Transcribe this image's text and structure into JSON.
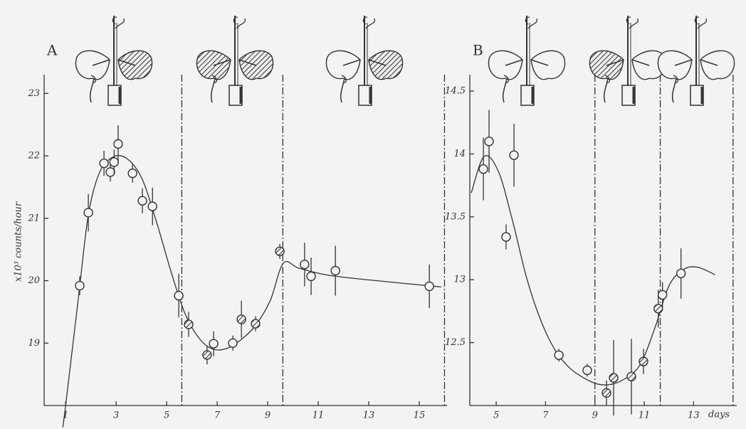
{
  "chart_data": [
    {
      "type": "scatter",
      "label": "A",
      "y_label": "x10³ counts/hour",
      "x": [
        1.56,
        1.9,
        2.52,
        2.77,
        2.92,
        3.08,
        3.65,
        4.04,
        4.44,
        5.48,
        5.87,
        6.6,
        6.86,
        7.62,
        7.96,
        8.52,
        9.48,
        10.46,
        10.72,
        11.68,
        15.4
      ],
      "values": [
        19.92,
        21.09,
        21.88,
        21.74,
        21.9,
        22.19,
        21.72,
        21.28,
        21.19,
        19.76,
        19.3,
        18.81,
        18.99,
        19.0,
        19.38,
        19.31,
        20.47,
        20.26,
        20.07,
        20.16,
        19.91
      ],
      "errors": [
        0.15,
        0.3,
        0.2,
        0.15,
        0.2,
        0.3,
        0.15,
        0.2,
        0.3,
        0.35,
        0.2,
        0.15,
        0.2,
        0.12,
        0.3,
        0.12,
        0.12,
        0.35,
        0.3,
        0.4,
        0.35
      ],
      "hatched": [
        false,
        false,
        false,
        false,
        false,
        false,
        false,
        false,
        false,
        false,
        true,
        true,
        false,
        false,
        true,
        true,
        true,
        false,
        false,
        false,
        false
      ],
      "curve": {
        "x": [
          0.89,
          1.0,
          1.5,
          1.9,
          2.35,
          2.92,
          3.48,
          4.04,
          4.6,
          5.17,
          5.73,
          6.3,
          6.86,
          7.42,
          7.99,
          8.55,
          9.11,
          9.62,
          10.24,
          11.37,
          13.06,
          15.87
        ],
        "values": [
          17.65,
          18.0,
          19.7,
          21.05,
          21.74,
          21.99,
          21.94,
          21.62,
          20.94,
          20.15,
          19.47,
          19.07,
          18.9,
          18.92,
          19.07,
          19.3,
          19.69,
          20.28,
          20.2,
          20.09,
          20.01,
          19.9
        ]
      },
      "dividers": [
        5.6,
        9.6,
        16.0
      ],
      "xlim": [
        0.15,
        16.1
      ],
      "ylim": [
        18,
        23.3
      ],
      "xticks": [
        1,
        3,
        5,
        7,
        9,
        11,
        13,
        15
      ],
      "yticks": [
        19,
        20,
        21,
        22,
        23
      ]
    },
    {
      "type": "scatter",
      "label": "B",
      "x_label": "days",
      "x": [
        4.48,
        4.71,
        5.4,
        5.72,
        7.54,
        8.69,
        9.47,
        9.76,
        10.48,
        10.97,
        11.57,
        11.74,
        12.49
      ],
      "values": [
        13.88,
        14.1,
        13.34,
        13.99,
        12.4,
        12.28,
        12.1,
        12.22,
        12.23,
        12.35,
        12.77,
        12.88,
        13.05
      ],
      "errors": [
        0.25,
        0.25,
        0.1,
        0.25,
        0.05,
        0.05,
        0.1,
        0.3,
        0.3,
        0.1,
        0.15,
        0.1,
        0.2
      ],
      "hatched": [
        false,
        false,
        false,
        false,
        false,
        false,
        true,
        true,
        true,
        true,
        true,
        false,
        false
      ],
      "curve": {
        "x": [
          3.99,
          4.51,
          5.09,
          5.66,
          6.24,
          6.82,
          7.39,
          7.97,
          8.54,
          9.12,
          9.7,
          10.27,
          10.85,
          11.42,
          12.0,
          12.58,
          13.15,
          13.87
        ],
        "values": [
          13.69,
          13.98,
          13.86,
          13.47,
          13.01,
          12.67,
          12.44,
          12.3,
          12.22,
          12.17,
          12.17,
          12.22,
          12.33,
          12.61,
          12.95,
          13.08,
          13.1,
          13.04
        ]
      },
      "dividers": [
        9.0,
        11.65,
        14.6
      ],
      "xlim": [
        3.93,
        14.75
      ],
      "ylim": [
        12,
        14.63
      ],
      "xticks": [
        5,
        7,
        9,
        11,
        13
      ],
      "yticks": [
        12.5,
        13,
        13.5,
        14,
        14.5
      ]
    }
  ]
}
